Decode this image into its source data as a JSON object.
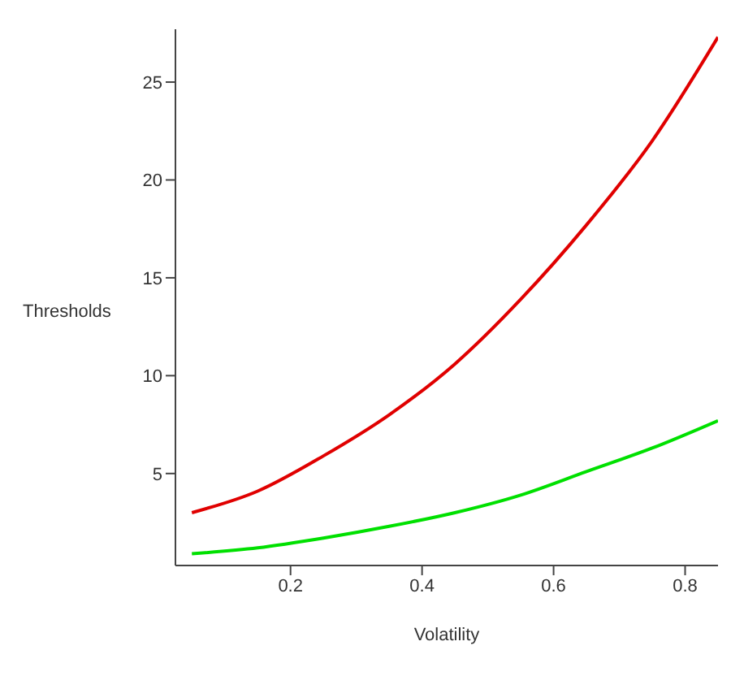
{
  "chart_data": {
    "type": "line",
    "xlabel": "Volatility",
    "ylabel": "Thresholds",
    "x": [
      0.05,
      0.15,
      0.25,
      0.35,
      0.45,
      0.55,
      0.65,
      0.75,
      0.85
    ],
    "series": [
      {
        "color": "#e00000",
        "values": [
          3.0,
          4.1,
          5.9,
          8.0,
          10.6,
          13.9,
          17.7,
          22.0,
          27.3
        ]
      },
      {
        "color": "#00e000",
        "values": [
          0.9,
          1.2,
          1.7,
          2.3,
          3.0,
          3.9,
          5.1,
          6.3,
          7.7
        ]
      }
    ],
    "xlim": [
      0.025,
      0.85
    ],
    "xticks": [
      0.2,
      0.4,
      0.6,
      0.8
    ],
    "ylim": [
      0.3,
      27.7
    ],
    "yticks": [
      5,
      10,
      15,
      20,
      25
    ],
    "grid": false,
    "marker": "none",
    "line_style": "solid"
  }
}
